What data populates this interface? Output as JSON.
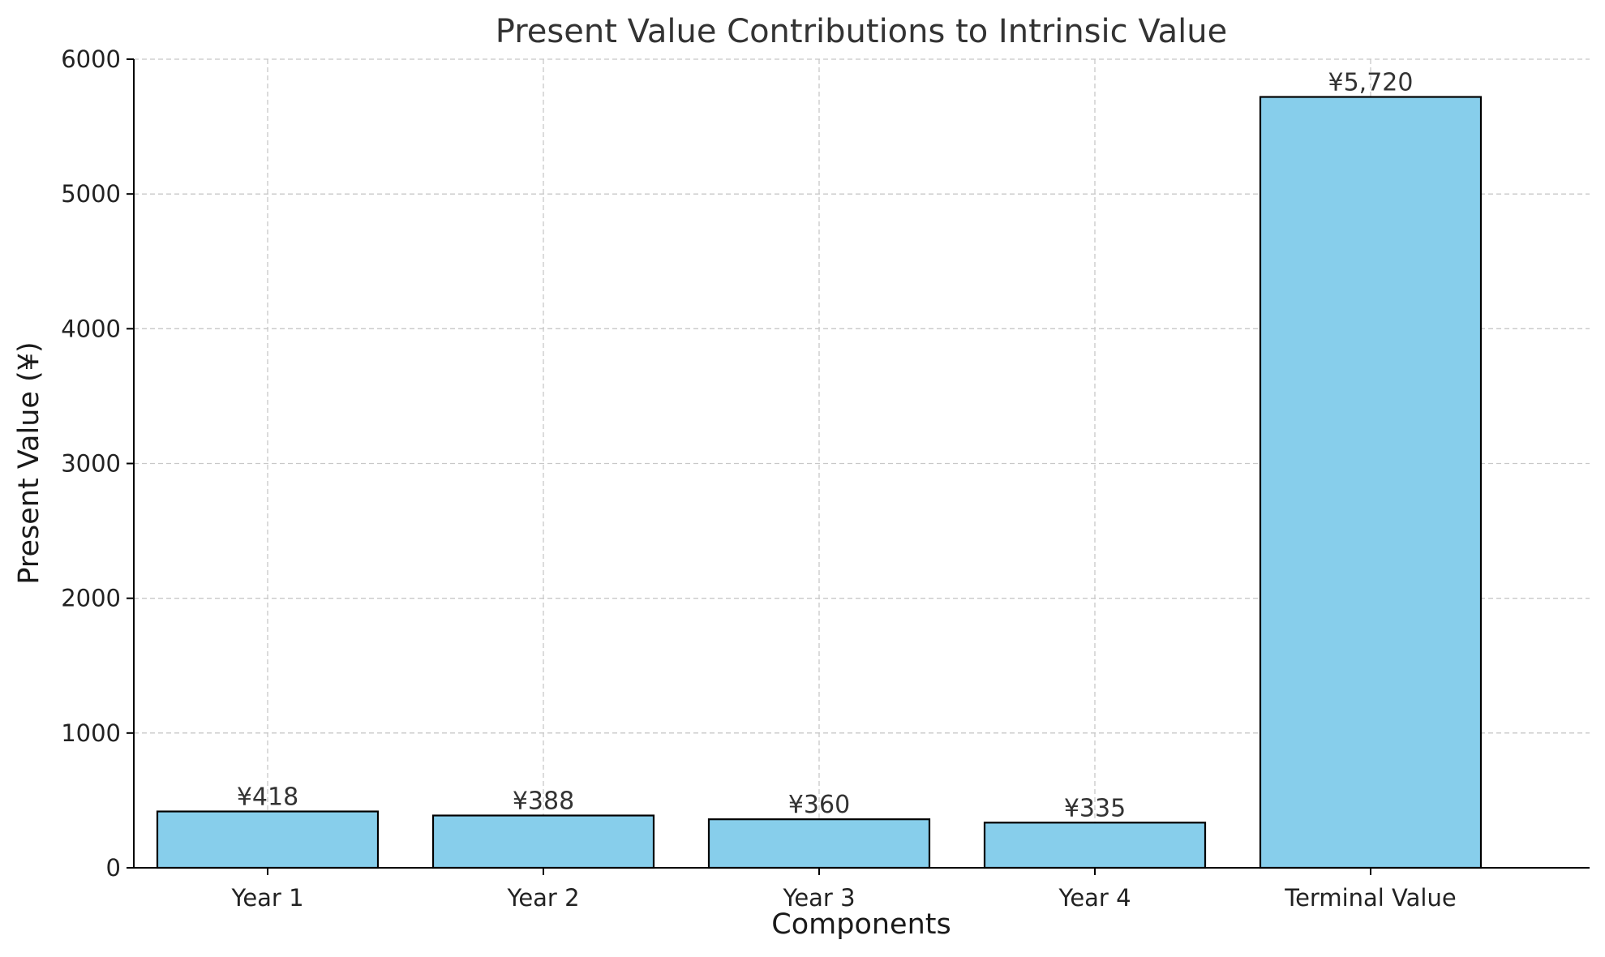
{
  "chart_data": {
    "type": "bar",
    "title": "Present Value Contributions to Intrinsic Value",
    "xlabel": "Components",
    "ylabel": "Present Value (¥)",
    "categories": [
      "Year 1",
      "Year 2",
      "Year 3",
      "Year 4",
      "Terminal Value"
    ],
    "values": [
      418,
      388,
      360,
      335,
      5720
    ],
    "data_labels": [
      "¥418",
      "¥388",
      "¥360",
      "¥335",
      "¥5,720"
    ],
    "ylim": [
      0,
      6000
    ],
    "yticks": [
      0,
      1000,
      2000,
      3000,
      4000,
      5000,
      6000
    ],
    "grid": true,
    "legend": "none",
    "colors": {
      "bar_fill": "#87ceeb",
      "bar_edge": "#000000",
      "grid": "#c8c8c8"
    }
  }
}
